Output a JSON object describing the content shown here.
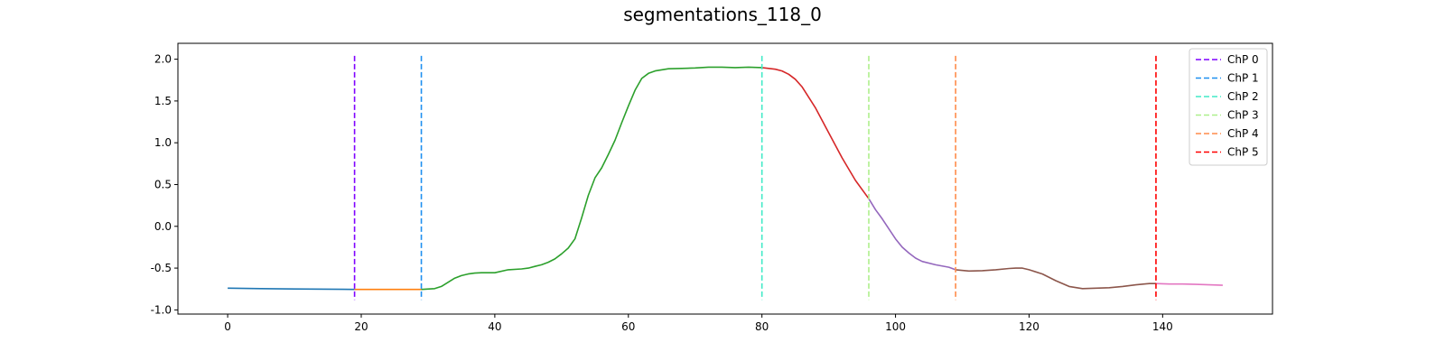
{
  "chart_data": {
    "type": "line",
    "title": "segmentations_118_0",
    "xlabel": "",
    "ylabel": "",
    "xlim": [
      -7.45,
      156.45
    ],
    "ylim": [
      -1.05,
      2.19
    ],
    "xticks": [
      0,
      20,
      40,
      60,
      80,
      100,
      120,
      140
    ],
    "yticks": [
      -1.0,
      -0.5,
      0.0,
      0.5,
      1.0,
      1.5,
      2.0
    ],
    "grid": false,
    "legend_position": "top-right",
    "series": [
      {
        "color": "#1f77b4",
        "x": [
          0,
          5,
          10,
          15,
          19
        ],
        "y": [
          -0.74,
          -0.745,
          -0.75,
          -0.752,
          -0.755
        ]
      },
      {
        "color": "#ff7f0e",
        "x": [
          19,
          22,
          25,
          29
        ],
        "y": [
          -0.755,
          -0.755,
          -0.755,
          -0.755
        ]
      },
      {
        "color": "#2ca02c",
        "x": [
          29,
          31,
          32,
          33,
          34,
          35,
          36,
          37,
          38,
          40,
          42,
          44,
          45,
          46,
          47,
          48,
          49,
          50,
          51,
          52,
          53,
          54,
          55,
          56,
          57,
          58,
          59,
          60,
          61,
          62,
          63,
          64,
          66,
          68,
          70,
          72,
          74,
          76,
          78,
          80
        ],
        "y": [
          -0.755,
          -0.745,
          -0.72,
          -0.67,
          -0.62,
          -0.59,
          -0.57,
          -0.56,
          -0.555,
          -0.555,
          -0.52,
          -0.51,
          -0.5,
          -0.48,
          -0.46,
          -0.43,
          -0.39,
          -0.33,
          -0.26,
          -0.15,
          0.1,
          0.37,
          0.58,
          0.7,
          0.86,
          1.03,
          1.24,
          1.44,
          1.63,
          1.77,
          1.83,
          1.86,
          1.885,
          1.89,
          1.895,
          1.905,
          1.905,
          1.9,
          1.905,
          1.9
        ]
      },
      {
        "color": "#d62728",
        "x": [
          80,
          82,
          83,
          84,
          85,
          86,
          88,
          90,
          92,
          94,
          96
        ],
        "y": [
          1.9,
          1.88,
          1.86,
          1.82,
          1.76,
          1.67,
          1.42,
          1.12,
          0.82,
          0.55,
          0.33
        ]
      },
      {
        "color": "#9467bd",
        "x": [
          96,
          97,
          98,
          99,
          100,
          101,
          102,
          103,
          104,
          106,
          108,
          109
        ],
        "y": [
          0.33,
          0.2,
          0.09,
          -0.03,
          -0.15,
          -0.25,
          -0.32,
          -0.38,
          -0.42,
          -0.46,
          -0.49,
          -0.52
        ]
      },
      {
        "color": "#8c564b",
        "x": [
          109,
          111,
          113,
          115,
          117,
          118,
          119,
          120,
          122,
          124,
          126,
          128,
          130,
          132,
          134,
          136,
          138,
          139
        ],
        "y": [
          -0.52,
          -0.535,
          -0.53,
          -0.52,
          -0.505,
          -0.5,
          -0.5,
          -0.52,
          -0.57,
          -0.65,
          -0.72,
          -0.745,
          -0.74,
          -0.735,
          -0.72,
          -0.7,
          -0.685,
          -0.685
        ]
      },
      {
        "color": "#e377c2",
        "x": [
          139,
          141,
          143,
          145,
          147,
          149
        ],
        "y": [
          -0.685,
          -0.69,
          -0.69,
          -0.695,
          -0.7,
          -0.705
        ]
      }
    ],
    "changepoints": [
      {
        "label": "ChP 0",
        "x": 19,
        "color": "#7f00ff"
      },
      {
        "label": "ChP 1",
        "x": 29,
        "color": "#1e8ff0"
      },
      {
        "label": "ChP 2",
        "x": 80,
        "color": "#41eac7"
      },
      {
        "label": "ChP 3",
        "x": 96,
        "color": "#aef08c"
      },
      {
        "label": "ChP 4",
        "x": 109,
        "color": "#ff8c4a"
      },
      {
        "label": "ChP 5",
        "x": 139,
        "color": "#ff0000"
      }
    ],
    "changepoint_y_range": [
      -0.88,
      2.04
    ]
  }
}
